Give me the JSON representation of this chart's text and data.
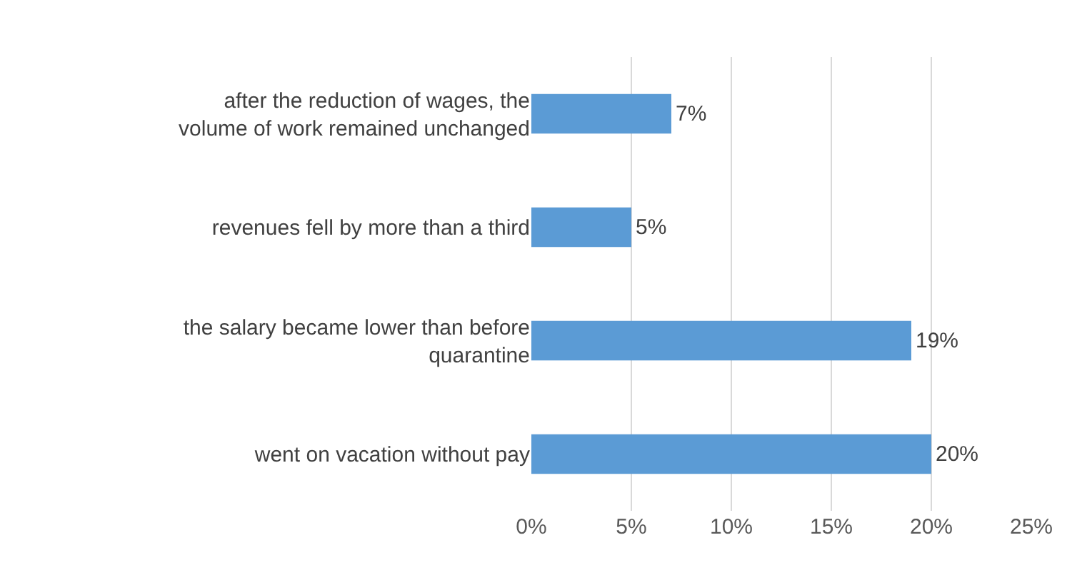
{
  "chart_data": {
    "type": "bar",
    "orientation": "horizontal",
    "categories": [
      "after the reduction of wages, the volume of work remained unchanged",
      "revenues fell by more than a third",
      "the salary became lower than before quarantine",
      "went on vacation without pay"
    ],
    "values": [
      7,
      5,
      19,
      20
    ],
    "value_labels": [
      "7%",
      "5%",
      "19%",
      "20%"
    ],
    "color": "#5b9bd5",
    "xlim": [
      0,
      25
    ],
    "xticks": [
      {
        "value": 0,
        "label": "0%"
      },
      {
        "value": 5,
        "label": "5%"
      },
      {
        "value": 10,
        "label": "10%"
      },
      {
        "value": 15,
        "label": "15%"
      },
      {
        "value": 20,
        "label": "20%"
      },
      {
        "value": 25,
        "label": "25%"
      }
    ],
    "grid": "x"
  }
}
